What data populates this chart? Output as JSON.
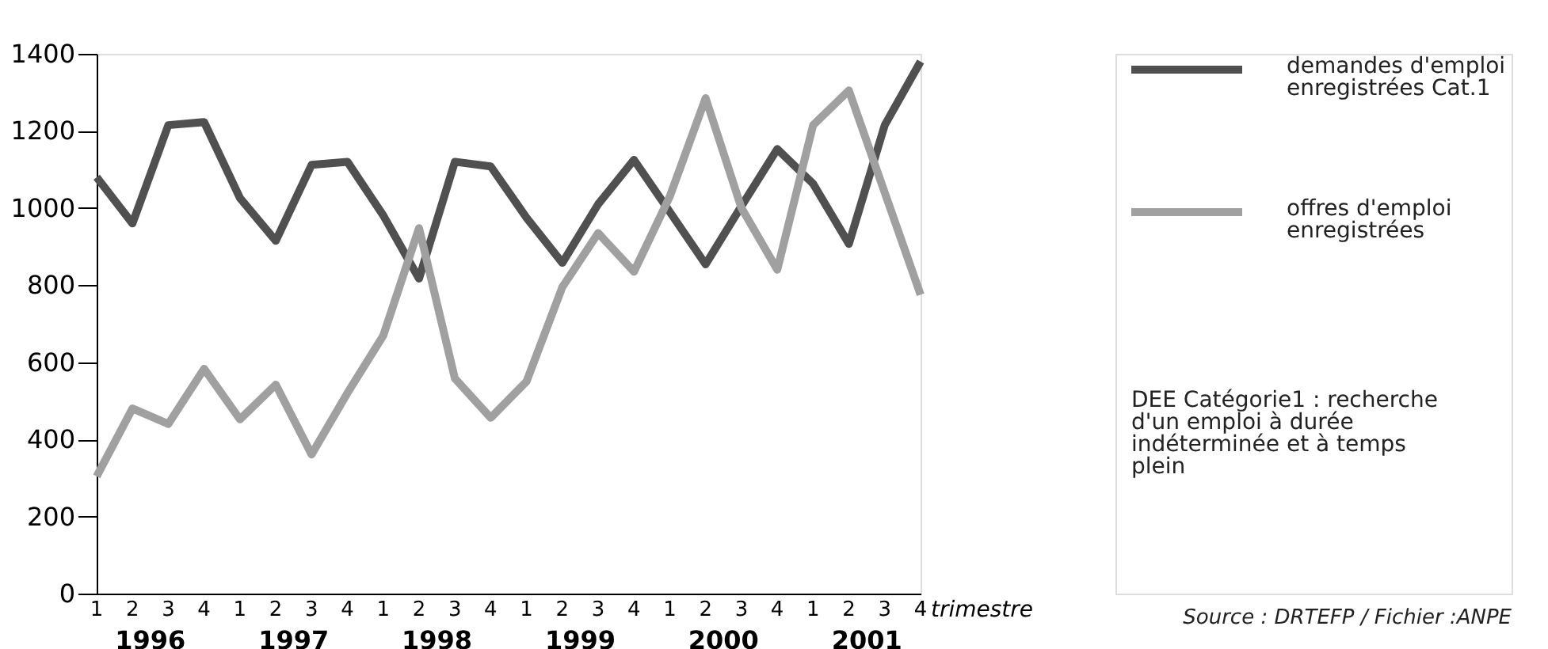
{
  "chart_data": {
    "type": "line",
    "categories": [
      "1",
      "2",
      "3",
      "4",
      "1",
      "2",
      "3",
      "4",
      "1",
      "2",
      "3",
      "4",
      "1",
      "2",
      "3",
      "4",
      "1",
      "2",
      "3",
      "4",
      "1",
      "2",
      "3",
      "4"
    ],
    "xlabel": "trimestre",
    "series": [
      {
        "name": "demandes d'emploi enregistrées Cat.1",
        "color": "#505050",
        "values": [
          1080,
          960,
          1215,
          1223,
          1026,
          915,
          1112,
          1120,
          981,
          817,
          1120,
          1108,
          975,
          858,
          1010,
          1125,
          990,
          854,
          1005,
          1153,
          1063,
          907,
          1215,
          1380
        ]
      },
      {
        "name": "offres d'emploi enregistrées",
        "color": "#a0a0a0",
        "values": [
          304,
          480,
          440,
          583,
          452,
          542,
          361,
          520,
          669,
          948,
          558,
          456,
          550,
          795,
          935,
          835,
          1030,
          1285,
          1000,
          840,
          1215,
          1305,
          1040,
          775
        ]
      }
    ],
    "ylim": [
      0,
      1400
    ],
    "yticks": [
      0,
      200,
      400,
      600,
      800,
      1000,
      1200,
      1400
    ],
    "grid": false,
    "legend": "right",
    "marker": "none",
    "line_style": "solid",
    "annotations": [
      "1996",
      "1997",
      "1998",
      "1999",
      "2000",
      "2001",
      "DEE Catégorie1 : recherche d'un emploi à durée indéterminée et à temps plein",
      "Source : DRTEFP / Fichier :ANPE"
    ]
  }
}
